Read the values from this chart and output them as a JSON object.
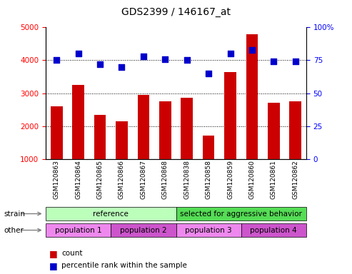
{
  "title": "GDS2399 / 146167_at",
  "samples": [
    "GSM120863",
    "GSM120864",
    "GSM120865",
    "GSM120866",
    "GSM120867",
    "GSM120868",
    "GSM120838",
    "GSM120858",
    "GSM120859",
    "GSM120860",
    "GSM120861",
    "GSM120862"
  ],
  "counts": [
    2600,
    3250,
    2350,
    2150,
    2950,
    2750,
    2850,
    1700,
    3650,
    4800,
    2700,
    2750
  ],
  "percentiles": [
    75,
    80,
    72,
    70,
    78,
    76,
    75,
    65,
    80,
    83,
    74,
    74
  ],
  "ylim_left": [
    1000,
    5000
  ],
  "ylim_right": [
    0,
    100
  ],
  "yticks_left": [
    1000,
    2000,
    3000,
    4000,
    5000
  ],
  "yticks_right": [
    0,
    25,
    50,
    75,
    100
  ],
  "bar_color": "#cc0000",
  "dot_color": "#0000cc",
  "grid_lines": [
    2000,
    3000,
    4000
  ],
  "strain_groups": [
    {
      "label": "reference",
      "start": 0,
      "end": 6,
      "color": "#bbffbb"
    },
    {
      "label": "selected for aggressive behavior",
      "start": 6,
      "end": 12,
      "color": "#55dd55"
    }
  ],
  "other_groups": [
    {
      "label": "population 1",
      "start": 0,
      "end": 3,
      "color": "#ee88ee"
    },
    {
      "label": "population 2",
      "start": 3,
      "end": 6,
      "color": "#cc55cc"
    },
    {
      "label": "population 3",
      "start": 6,
      "end": 9,
      "color": "#ee88ee"
    },
    {
      "label": "population 4",
      "start": 9,
      "end": 12,
      "color": "#cc55cc"
    }
  ],
  "legend_count_color": "#cc0000",
  "legend_pct_color": "#0000cc",
  "strain_label": "strain",
  "other_label": "other"
}
